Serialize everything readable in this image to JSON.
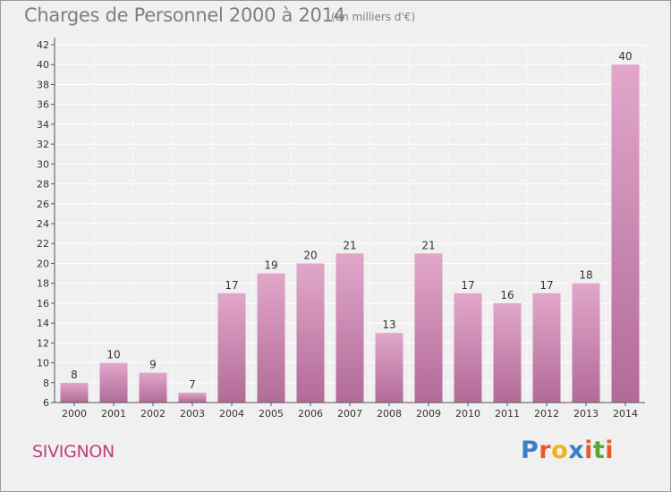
{
  "title": "Charges de Personnel 2000 à 2014",
  "subtitle": "(en milliers d'€)",
  "commune": "SIVIGNON",
  "brand": {
    "letters": [
      "P",
      "r",
      "o",
      "x",
      "i",
      "t",
      "i"
    ],
    "colors": [
      "#3a7fc6",
      "#e85a2c",
      "#f2b21a",
      "#3a7fc6",
      "#e85a2c",
      "#57a839",
      "#e85a2c"
    ]
  },
  "colors": {
    "bar_light": "#e2a6cb",
    "bar_dark": "#b16b97",
    "grid": "#ffffff",
    "background": "#f0f0f0",
    "title": "#7f7f7f",
    "commune": "#c0407a"
  },
  "chart_data": {
    "type": "bar",
    "categories": [
      "2000",
      "2001",
      "2002",
      "2003",
      "2004",
      "2005",
      "2006",
      "2007",
      "2008",
      "2009",
      "2010",
      "2011",
      "2012",
      "2013",
      "2014"
    ],
    "values": [
      8,
      10,
      9,
      7,
      17,
      19,
      20,
      21,
      13,
      21,
      17,
      16,
      17,
      18,
      40
    ],
    "ylim": [
      6,
      42
    ],
    "yticks": [
      6,
      8,
      10,
      12,
      14,
      16,
      18,
      20,
      22,
      24,
      26,
      28,
      30,
      32,
      34,
      36,
      38,
      40,
      42
    ],
    "grid": true,
    "grid_style": "dashed-vertical",
    "legend": "none",
    "data_labels": true
  }
}
